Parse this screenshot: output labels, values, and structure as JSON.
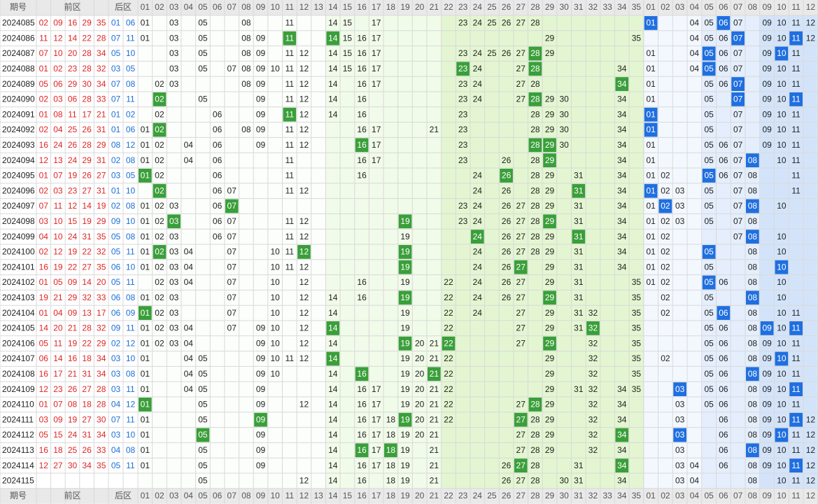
{
  "header": {
    "period": "期号",
    "front": "前区",
    "back": "后区",
    "front_cols": [
      "01",
      "02",
      "03",
      "04",
      "05",
      "06",
      "07",
      "08",
      "09",
      "10",
      "11",
      "12",
      "13",
      "14",
      "15",
      "16",
      "17",
      "18",
      "19",
      "20",
      "21",
      "22",
      "23",
      "24",
      "25",
      "26",
      "27",
      "28",
      "29",
      "30",
      "31",
      "32",
      "33",
      "34",
      "35"
    ],
    "back_cols": [
      "01",
      "02",
      "03",
      "04",
      "05",
      "06",
      "07",
      "08",
      "09",
      "10",
      "11",
      "12"
    ]
  },
  "rows": [
    {
      "period": "2024085",
      "front": [
        "02",
        "09",
        "16",
        "29",
        "35"
      ],
      "back": [
        "01",
        "06"
      ],
      "front_grid": [
        "01",
        "03",
        "05",
        "08",
        "11",
        "14",
        "15",
        "17",
        "23",
        "24",
        "25",
        "26",
        "27",
        "28"
      ],
      "back_grid": [
        "01",
        "04",
        "05",
        "06",
        "07",
        "09",
        "10",
        "11",
        "12"
      ]
    },
    {
      "period": "2024086",
      "front": [
        "11",
        "12",
        "14",
        "22",
        "28"
      ],
      "back": [
        "07",
        "11"
      ],
      "front_grid": [
        "01",
        "03",
        "05",
        "08",
        "09",
        "11",
        "14",
        "15",
        "16",
        "17",
        "29",
        "35"
      ],
      "back_grid": [
        "04",
        "05",
        "06",
        "07",
        "09",
        "10",
        "11",
        "12"
      ]
    },
    {
      "period": "2024087",
      "front": [
        "07",
        "10",
        "20",
        "28",
        "34"
      ],
      "back": [
        "05",
        "10"
      ],
      "front_grid": [
        "03",
        "05",
        "08",
        "09",
        "11",
        "12",
        "14",
        "15",
        "16",
        "17",
        "23",
        "24",
        "25",
        "26",
        "27",
        "28",
        "29"
      ],
      "back_grid": [
        "01",
        "04",
        "05",
        "06",
        "07",
        "09",
        "10",
        "11"
      ]
    },
    {
      "period": "2024088",
      "front": [
        "01",
        "02",
        "23",
        "28",
        "32"
      ],
      "back": [
        "03",
        "05"
      ],
      "front_grid": [
        "03",
        "05",
        "07",
        "08",
        "09",
        "10",
        "11",
        "12",
        "14",
        "15",
        "16",
        "17",
        "23",
        "24",
        "27",
        "28",
        "34"
      ],
      "back_grid": [
        "01",
        "04",
        "05",
        "06",
        "07",
        "09",
        "10",
        "11"
      ]
    },
    {
      "period": "2024089",
      "front": [
        "05",
        "06",
        "29",
        "30",
        "34"
      ],
      "back": [
        "07",
        "08"
      ],
      "front_grid": [
        "02",
        "03",
        "08",
        "09",
        "11",
        "12",
        "14",
        "16",
        "17",
        "23",
        "24",
        "27",
        "28",
        "34"
      ],
      "back_grid": [
        "01",
        "05",
        "06",
        "07",
        "09",
        "10",
        "11"
      ]
    },
    {
      "period": "2024090",
      "front": [
        "02",
        "03",
        "06",
        "28",
        "33"
      ],
      "back": [
        "07",
        "11"
      ],
      "front_grid": [
        "02",
        "05",
        "09",
        "11",
        "12",
        "14",
        "16",
        "23",
        "24",
        "27",
        "28",
        "29",
        "30",
        "34"
      ],
      "back_grid": [
        "01",
        "05",
        "07",
        "09",
        "10",
        "11"
      ]
    },
    {
      "period": "2024091",
      "front": [
        "01",
        "08",
        "11",
        "17",
        "21"
      ],
      "back": [
        "01",
        "02"
      ],
      "front_grid": [
        "02",
        "06",
        "09",
        "11",
        "12",
        "14",
        "16",
        "23",
        "28",
        "29",
        "30",
        "34"
      ],
      "back_grid": [
        "01",
        "05",
        "07",
        "09",
        "10",
        "11"
      ]
    },
    {
      "period": "2024092",
      "front": [
        "02",
        "04",
        "25",
        "26",
        "31"
      ],
      "back": [
        "01",
        "06"
      ],
      "front_grid": [
        "01",
        "02",
        "06",
        "08",
        "09",
        "11",
        "12",
        "16",
        "17",
        "21",
        "23",
        "28",
        "29",
        "30",
        "34"
      ],
      "back_grid": [
        "01",
        "05",
        "07",
        "09",
        "10",
        "11"
      ]
    },
    {
      "period": "2024093",
      "front": [
        "16",
        "24",
        "26",
        "28",
        "29"
      ],
      "back": [
        "08",
        "12"
      ],
      "front_grid": [
        "01",
        "02",
        "04",
        "06",
        "09",
        "11",
        "12",
        "16",
        "17",
        "23",
        "28",
        "29",
        "30",
        "34"
      ],
      "back_grid": [
        "01",
        "05",
        "06",
        "07",
        "09",
        "10",
        "11"
      ]
    },
    {
      "period": "2024094",
      "front": [
        "12",
        "13",
        "24",
        "29",
        "31"
      ],
      "back": [
        "02",
        "08"
      ],
      "front_grid": [
        "01",
        "02",
        "04",
        "06",
        "11",
        "16",
        "17",
        "23",
        "26",
        "28",
        "29",
        "34"
      ],
      "back_grid": [
        "01",
        "05",
        "06",
        "07",
        "08",
        "10",
        "11"
      ]
    },
    {
      "period": "2024095",
      "front": [
        "01",
        "07",
        "19",
        "26",
        "27"
      ],
      "back": [
        "03",
        "05"
      ],
      "front_grid": [
        "01",
        "02",
        "06",
        "11",
        "16",
        "24",
        "26",
        "28",
        "29",
        "31",
        "34"
      ],
      "back_grid": [
        "01",
        "02",
        "05",
        "06",
        "07",
        "08",
        "11"
      ]
    },
    {
      "period": "2024096",
      "front": [
        "02",
        "03",
        "23",
        "27",
        "31"
      ],
      "back": [
        "01",
        "10"
      ],
      "front_grid": [
        "02",
        "06",
        "07",
        "11",
        "12",
        "24",
        "26",
        "28",
        "29",
        "31",
        "34"
      ],
      "back_grid": [
        "01",
        "02",
        "03",
        "05",
        "07",
        "08",
        "11"
      ]
    },
    {
      "period": "2024097",
      "front": [
        "07",
        "11",
        "12",
        "14",
        "19"
      ],
      "back": [
        "02",
        "08"
      ],
      "front_grid": [
        "01",
        "02",
        "03",
        "06",
        "07",
        "23",
        "24",
        "26",
        "27",
        "28",
        "29",
        "31",
        "34"
      ],
      "back_grid": [
        "01",
        "02",
        "03",
        "05",
        "07",
        "08",
        "10"
      ]
    },
    {
      "period": "2024098",
      "front": [
        "03",
        "10",
        "15",
        "19",
        "29"
      ],
      "back": [
        "09",
        "10"
      ],
      "front_grid": [
        "01",
        "02",
        "03",
        "06",
        "07",
        "11",
        "12",
        "19",
        "23",
        "24",
        "26",
        "27",
        "28",
        "29",
        "31",
        "34"
      ],
      "back_grid": [
        "01",
        "02",
        "03",
        "05",
        "07",
        "08"
      ]
    },
    {
      "period": "2024099",
      "front": [
        "04",
        "10",
        "24",
        "31",
        "35"
      ],
      "back": [
        "05",
        "08"
      ],
      "front_grid": [
        "01",
        "02",
        "03",
        "06",
        "07",
        "11",
        "12",
        "19",
        "24",
        "26",
        "27",
        "28",
        "29",
        "31",
        "34"
      ],
      "back_grid": [
        "01",
        "02",
        "07",
        "08",
        "10"
      ]
    },
    {
      "period": "2024100",
      "front": [
        "02",
        "12",
        "19",
        "22",
        "32"
      ],
      "back": [
        "05",
        "11"
      ],
      "front_grid": [
        "01",
        "02",
        "03",
        "04",
        "07",
        "10",
        "11",
        "12",
        "19",
        "24",
        "26",
        "27",
        "28",
        "29",
        "31",
        "34"
      ],
      "back_grid": [
        "01",
        "02",
        "05",
        "08",
        "10"
      ]
    },
    {
      "period": "2024101",
      "front": [
        "16",
        "19",
        "22",
        "27",
        "35"
      ],
      "back": [
        "06",
        "10"
      ],
      "front_grid": [
        "01",
        "02",
        "03",
        "04",
        "07",
        "10",
        "11",
        "12",
        "19",
        "24",
        "26",
        "27",
        "29",
        "31",
        "34"
      ],
      "back_grid": [
        "01",
        "02",
        "05",
        "08",
        "10"
      ]
    },
    {
      "period": "2024102",
      "front": [
        "01",
        "05",
        "09",
        "14",
        "20"
      ],
      "back": [
        "05",
        "11"
      ],
      "front_grid": [
        "02",
        "03",
        "04",
        "07",
        "10",
        "12",
        "16",
        "19",
        "22",
        "24",
        "26",
        "27",
        "29",
        "31",
        "35"
      ],
      "back_grid": [
        "01",
        "02",
        "05",
        "06",
        "08",
        "10"
      ]
    },
    {
      "period": "2024103",
      "front": [
        "19",
        "21",
        "29",
        "32",
        "33"
      ],
      "back": [
        "06",
        "08"
      ],
      "front_grid": [
        "01",
        "02",
        "03",
        "07",
        "10",
        "12",
        "14",
        "16",
        "19",
        "22",
        "24",
        "26",
        "27",
        "29",
        "31",
        "35"
      ],
      "back_grid": [
        "02",
        "05",
        "08",
        "10"
      ]
    },
    {
      "period": "2024104",
      "front": [
        "01",
        "04",
        "09",
        "13",
        "17"
      ],
      "back": [
        "06",
        "09"
      ],
      "front_grid": [
        "01",
        "02",
        "03",
        "07",
        "10",
        "12",
        "14",
        "19",
        "22",
        "24",
        "27",
        "29",
        "31",
        "32",
        "35"
      ],
      "back_grid": [
        "02",
        "05",
        "06",
        "08",
        "10",
        "11"
      ]
    },
    {
      "period": "2024105",
      "front": [
        "14",
        "20",
        "21",
        "28",
        "32"
      ],
      "back": [
        "09",
        "11"
      ],
      "front_grid": [
        "01",
        "02",
        "03",
        "04",
        "07",
        "09",
        "10",
        "12",
        "14",
        "19",
        "22",
        "27",
        "29",
        "31",
        "32",
        "35"
      ],
      "back_grid": [
        "05",
        "06",
        "08",
        "09",
        "10",
        "11"
      ]
    },
    {
      "period": "2024106",
      "front": [
        "05",
        "11",
        "19",
        "22",
        "29"
      ],
      "back": [
        "02",
        "12"
      ],
      "front_grid": [
        "01",
        "02",
        "03",
        "04",
        "09",
        "10",
        "12",
        "14",
        "19",
        "20",
        "21",
        "22",
        "27",
        "29",
        "32",
        "35"
      ],
      "back_grid": [
        "05",
        "06",
        "08",
        "09",
        "10",
        "11"
      ]
    },
    {
      "period": "2024107",
      "front": [
        "06",
        "14",
        "16",
        "18",
        "34"
      ],
      "back": [
        "03",
        "10"
      ],
      "front_grid": [
        "01",
        "04",
        "05",
        "09",
        "10",
        "11",
        "12",
        "14",
        "19",
        "20",
        "21",
        "22",
        "29",
        "32",
        "35"
      ],
      "back_grid": [
        "02",
        "05",
        "06",
        "08",
        "09",
        "10",
        "11"
      ]
    },
    {
      "period": "2024108",
      "front": [
        "16",
        "17",
        "21",
        "31",
        "34"
      ],
      "back": [
        "03",
        "08"
      ],
      "front_grid": [
        "01",
        "04",
        "05",
        "09",
        "10",
        "14",
        "16",
        "19",
        "20",
        "21",
        "22",
        "29",
        "32",
        "35"
      ],
      "back_grid": [
        "05",
        "06",
        "08",
        "09",
        "10",
        "11"
      ]
    },
    {
      "period": "2024109",
      "front": [
        "12",
        "23",
        "26",
        "27",
        "28"
      ],
      "back": [
        "03",
        "11"
      ],
      "front_grid": [
        "01",
        "04",
        "05",
        "09",
        "14",
        "16",
        "17",
        "19",
        "20",
        "21",
        "22",
        "29",
        "31",
        "32",
        "34",
        "35"
      ],
      "back_grid": [
        "03",
        "05",
        "06",
        "08",
        "09",
        "10",
        "11"
      ]
    },
    {
      "period": "2024110",
      "front": [
        "01",
        "07",
        "08",
        "18",
        "28"
      ],
      "back": [
        "04",
        "12"
      ],
      "front_grid": [
        "01",
        "05",
        "09",
        "12",
        "14",
        "16",
        "17",
        "19",
        "20",
        "21",
        "22",
        "27",
        "28",
        "29",
        "32",
        "34"
      ],
      "back_grid": [
        "03",
        "05",
        "06",
        "08",
        "09",
        "10",
        "11"
      ]
    },
    {
      "period": "2024111",
      "front": [
        "03",
        "09",
        "19",
        "27",
        "30"
      ],
      "back": [
        "07",
        "11"
      ],
      "front_grid": [
        "01",
        "05",
        "09",
        "14",
        "16",
        "17",
        "18",
        "19",
        "20",
        "21",
        "22",
        "27",
        "28",
        "29",
        "32",
        "34"
      ],
      "back_grid": [
        "03",
        "06",
        "08",
        "09",
        "10",
        "11",
        "12"
      ]
    },
    {
      "period": "2024112",
      "front": [
        "05",
        "15",
        "24",
        "31",
        "34"
      ],
      "back": [
        "03",
        "10"
      ],
      "front_grid": [
        "01",
        "05",
        "09",
        "14",
        "16",
        "17",
        "18",
        "19",
        "20",
        "21",
        "27",
        "28",
        "29",
        "32",
        "34"
      ],
      "back_grid": [
        "03",
        "06",
        "08",
        "09",
        "10",
        "11",
        "12"
      ]
    },
    {
      "period": "2024113",
      "front": [
        "16",
        "18",
        "25",
        "26",
        "33"
      ],
      "back": [
        "04",
        "08"
      ],
      "front_grid": [
        "01",
        "05",
        "09",
        "14",
        "16",
        "17",
        "18",
        "19",
        "21",
        "27",
        "28",
        "29",
        "32",
        "34"
      ],
      "back_grid": [
        "03",
        "06",
        "08",
        "09",
        "10",
        "11",
        "12"
      ]
    },
    {
      "period": "2024114",
      "front": [
        "12",
        "27",
        "30",
        "34",
        "35"
      ],
      "back": [
        "05",
        "11"
      ],
      "front_grid": [
        "01",
        "05",
        "09",
        "14",
        "16",
        "17",
        "18",
        "19",
        "21",
        "26",
        "27",
        "28",
        "31",
        "34"
      ],
      "back_grid": [
        "03",
        "04",
        "06",
        "08",
        "09",
        "10",
        "11",
        "12"
      ]
    },
    {
      "period": "2024115",
      "front": [],
      "back": [],
      "front_grid": [
        "05",
        "12",
        "14",
        "16",
        "18",
        "19",
        "21",
        "26",
        "27",
        "28",
        "30",
        "31",
        "34"
      ],
      "back_grid": [
        "03",
        "04",
        "08",
        "10",
        "11",
        "12"
      ]
    }
  ]
}
